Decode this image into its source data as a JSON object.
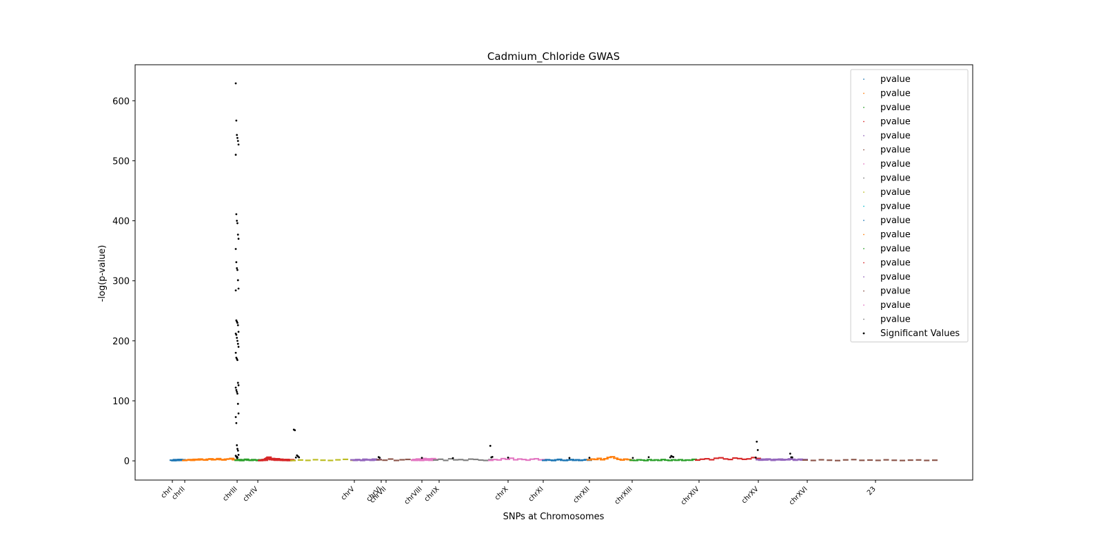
{
  "chart_data": {
    "type": "scatter",
    "title": "Cadmium_Chloride GWAS",
    "xlabel": "SNPs at Chromosomes",
    "ylabel": "-log(p-value)",
    "ylim": [
      -32,
      660
    ],
    "yticks": [
      0,
      100,
      200,
      300,
      400,
      500,
      600
    ],
    "x_tick_labels": [
      "chrI",
      "chrII",
      "chrIII",
      "chrIV",
      "chrV",
      "chrVI",
      "chrVII",
      "chrVIII",
      "chrIX",
      "chrX",
      "chrXI",
      "chrXII",
      "chrXIII",
      "chrXIV",
      "chrXV",
      "chrXVI",
      "23"
    ],
    "legend_position": "top-right",
    "legend": [
      {
        "label": "pvalue",
        "color": "#1f77b4"
      },
      {
        "label": "pvalue",
        "color": "#ff7f0e"
      },
      {
        "label": "pvalue",
        "color": "#2ca02c"
      },
      {
        "label": "pvalue",
        "color": "#d62728"
      },
      {
        "label": "pvalue",
        "color": "#9467bd"
      },
      {
        "label": "pvalue",
        "color": "#8c564b"
      },
      {
        "label": "pvalue",
        "color": "#e377c2"
      },
      {
        "label": "pvalue",
        "color": "#7f7f7f"
      },
      {
        "label": "pvalue",
        "color": "#bcbd22"
      },
      {
        "label": "pvalue",
        "color": "#17becf"
      },
      {
        "label": "pvalue",
        "color": "#1f77b4"
      },
      {
        "label": "pvalue",
        "color": "#ff7f0e"
      },
      {
        "label": "pvalue",
        "color": "#2ca02c"
      },
      {
        "label": "pvalue",
        "color": "#d62728"
      },
      {
        "label": "pvalue",
        "color": "#9467bd"
      },
      {
        "label": "pvalue",
        "color": "#8c564b"
      },
      {
        "label": "pvalue",
        "color": "#e377c2"
      },
      {
        "label": "pvalue",
        "color": "#7f7f7f"
      },
      {
        "label": "Significant Values",
        "color": "#000000"
      }
    ],
    "series": [
      {
        "color": "#1f77b4",
        "values": [
          1.2,
          0.5,
          2.1,
          0.8,
          1.6,
          2.4,
          0.9,
          1.9,
          1.1
        ]
      },
      {
        "color": "#ff7f0e",
        "values": [
          0.8,
          1.5,
          2.2,
          1.0,
          2.6,
          1.7,
          3.1,
          2.0,
          1.4,
          2.8,
          3.5,
          1.9,
          2.5,
          3.8,
          2.2,
          1.6,
          2.9,
          3.3,
          4.1,
          2.0
        ]
      },
      {
        "color": "#2ca02c",
        "values": [
          1.0,
          2.2,
          0.6,
          1.8,
          2.7,
          1.3,
          0.9,
          2.1,
          1.5,
          0.7,
          1.9
        ]
      },
      {
        "color": "#d62728",
        "values": [
          0.6,
          1.4,
          0.9,
          2.3,
          1.1,
          3.5,
          4.8,
          6.2,
          3.1,
          2.2,
          4.0,
          1.8,
          2.9,
          1.2,
          3.6,
          2.5,
          1.4,
          2.8,
          1.0,
          2.1,
          0.8,
          1.7,
          2.4,
          1.2,
          0.6,
          1.5,
          2.0,
          0.9
        ]
      },
      {
        "color": "#bcbd22",
        "values": [
          0.7,
          1.5,
          0.9,
          2.0,
          1.2,
          0.8,
          1.8,
          2.6,
          1.1
        ]
      },
      {
        "color": "#9467bd",
        "values": [
          1.8,
          0.9,
          2.3,
          1.4,
          0.7,
          2.8,
          1.6,
          2.2,
          1.0,
          3.0,
          1.5,
          2.4
        ]
      },
      {
        "color": "#8c564b",
        "values": [
          2.0,
          1.2,
          3.1,
          0.8,
          1.9,
          2.5,
          1.3
        ]
      },
      {
        "color": "#e377c2",
        "values": [
          1.1,
          2.4,
          0.9,
          1.7,
          3.2,
          1.5,
          2.6,
          0.8,
          2.1,
          4.0,
          1.8,
          2.9,
          1.3,
          3.4,
          2.2,
          1.0,
          2.7,
          3.8,
          1.6,
          2.3
        ]
      },
      {
        "color": "#7f7f7f",
        "values": [
          1.5,
          2.8,
          0.9,
          3.5,
          1.8,
          2.2,
          1.1,
          3.0,
          2.5,
          1.4,
          0.8,
          2.0
        ]
      },
      {
        "color": "#e377c2",
        "values": [
          1.0,
          2.3,
          1.6,
          3.8,
          2.7,
          4.5,
          1.9,
          3.2,
          2.4,
          1.3,
          2.9,
          3.6,
          1.8,
          2.1
        ]
      },
      {
        "color": "#1f77b4",
        "values": [
          0.9,
          2.0,
          1.3,
          0.6,
          1.8,
          2.6,
          1.1,
          0.7,
          1.6,
          2.3,
          1.0,
          1.9,
          0.8,
          1.4,
          2.2,
          1.2
        ]
      },
      {
        "color": "#ff7f0e",
        "values": [
          1.8,
          3.1,
          2.4,
          4.2,
          2.0,
          3.6,
          5.8,
          6.9,
          4.5,
          2.7,
          1.5,
          3.0,
          2.2,
          1.0
        ]
      },
      {
        "color": "#2ca02c",
        "values": [
          1.2,
          0.8,
          1.9,
          1.4,
          0.6,
          2.1,
          1.0,
          1.7,
          0.9,
          2.3,
          1.3,
          0.7,
          1.8,
          1.1,
          2.0,
          0.8,
          1.5,
          1.2,
          2.6,
          1.4
        ]
      },
      {
        "color": "#d62728",
        "values": [
          1.5,
          2.8,
          3.6,
          2.0,
          4.4,
          5.2,
          3.3,
          2.4,
          4.8,
          3.9,
          2.7,
          3.4,
          5.6,
          4.1
        ]
      },
      {
        "color": "#9467bd",
        "values": [
          2.1,
          1.3,
          2.9,
          1.6,
          3.2,
          2.2,
          1.0,
          2.6,
          1.8,
          3.0,
          1.4,
          2.4,
          1.9,
          3.4,
          2.7,
          1.2,
          2.0,
          2.8,
          1.5,
          2.3
        ]
      },
      {
        "color": "#8c564b",
        "values": [
          1.5,
          0.8,
          1.9,
          1.2,
          0.6,
          1.7,
          2.2,
          1.0,
          1.4,
          0.9,
          1.8,
          1.1,
          0.7,
          1.3,
          1.6,
          0.8,
          1.2
        ]
      }
    ],
    "significant": [
      629,
      567,
      543,
      538,
      533,
      527,
      510,
      411,
      400,
      396,
      377,
      370,
      353,
      331,
      321,
      318,
      301,
      287,
      284,
      234,
      232,
      230,
      226,
      215,
      212,
      210,
      205,
      200,
      195,
      190,
      180,
      172,
      170,
      168,
      130,
      126,
      122,
      118,
      115,
      112,
      95,
      79,
      73,
      63,
      26,
      20,
      17,
      10,
      8.5,
      7.2,
      6.0,
      5.5,
      52,
      51,
      5.6,
      9.2,
      7.5,
      5.8,
      6.3,
      5.2,
      5.0,
      4.6,
      25,
      5.9,
      6.6,
      5.4,
      4.8,
      5.1,
      4.9,
      6.2,
      5.7,
      8.1,
      7.0,
      6.4,
      5.5,
      32,
      18,
      12,
      6.0,
      5.8,
      5.1,
      6.5,
      4.7
    ]
  }
}
